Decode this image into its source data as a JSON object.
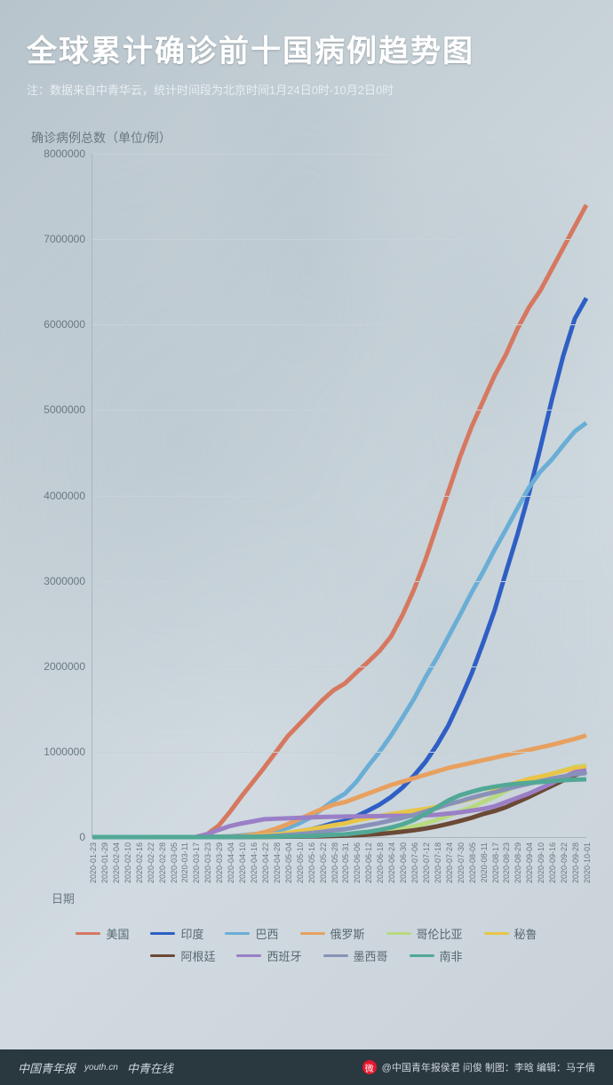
{
  "header": {
    "title": "全球累计确诊前十国病例趋势图",
    "subtitle": "注：数据来自中青华云，统计时间段为北京时间1月24日0时-10月2日0时"
  },
  "chart": {
    "type": "line",
    "yaxis_label": "确诊病例总数（单位/例）",
    "xaxis_label": "日期",
    "ylim": [
      0,
      8000000
    ],
    "yticks": [
      0,
      1000000,
      2000000,
      3000000,
      4000000,
      5000000,
      6000000,
      7000000,
      8000000
    ],
    "xticks": [
      "2020-01-23",
      "2020-01-29",
      "2020-02-04",
      "2020-02-10",
      "2020-02-16",
      "2020-02-22",
      "2020-02-28",
      "2020-03-05",
      "2020-03-11",
      "2020-03-17",
      "2020-03-23",
      "2020-03-29",
      "2020-04-04",
      "2020-04-10",
      "2020-04-16",
      "2020-04-22",
      "2020-04-28",
      "2020-05-04",
      "2020-05-10",
      "2020-05-16",
      "2020-05-22",
      "2020-05-28",
      "2020-05-31",
      "2020-06-06",
      "2020-06-12",
      "2020-06-18",
      "2020-06-24",
      "2020-06-30",
      "2020-07-06",
      "2020-07-12",
      "2020-07-18",
      "2020-07-24",
      "2020-07-30",
      "2020-08-05",
      "2020-08-11",
      "2020-08-17",
      "2020-08-23",
      "2020-08-29",
      "2020-09-04",
      "2020-09-10",
      "2020-09-16",
      "2020-09-22",
      "2020-09-28",
      "2020-10-01"
    ],
    "background_color": "#c5d0d6",
    "grid_color": "#c8d2d8",
    "axis_color": "#aab5bc",
    "text_color": "#6a7880",
    "line_width": 2.5,
    "series": [
      {
        "name": "美国",
        "color": "#d67860",
        "values": [
          0,
          0,
          0,
          0,
          0,
          0,
          0,
          20,
          90,
          2000,
          35000,
          135000,
          300000,
          480000,
          650000,
          820000,
          1000000,
          1180000,
          1320000,
          1460000,
          1600000,
          1720000,
          1800000,
          1930000,
          2050000,
          2180000,
          2350000,
          2600000,
          2900000,
          3250000,
          3650000,
          4050000,
          4450000,
          4800000,
          5100000,
          5400000,
          5650000,
          5950000,
          6200000,
          6400000,
          6650000,
          6900000,
          7150000,
          7400000
        ]
      },
      {
        "name": "印度",
        "color": "#2f5fc4",
        "values": [
          0,
          0,
          0,
          0,
          0,
          0,
          0,
          0,
          0,
          0,
          400,
          1000,
          3000,
          7000,
          13000,
          21000,
          31000,
          46000,
          67000,
          90000,
          125000,
          165000,
          190000,
          245000,
          310000,
          380000,
          470000,
          580000,
          720000,
          880000,
          1080000,
          1310000,
          1600000,
          1910000,
          2270000,
          2650000,
          3100000,
          3540000,
          4020000,
          4560000,
          5120000,
          5640000,
          6070000,
          6310000
        ]
      },
      {
        "name": "巴西",
        "color": "#6aaed6",
        "values": [
          0,
          0,
          0,
          0,
          0,
          0,
          0,
          0,
          0,
          200,
          1900,
          4300,
          10000,
          20000,
          32000,
          46000,
          72000,
          108000,
          160000,
          230000,
          330000,
          430000,
          510000,
          650000,
          830000,
          1000000,
          1190000,
          1400000,
          1620000,
          1870000,
          2100000,
          2350000,
          2600000,
          2860000,
          3100000,
          3360000,
          3600000,
          3850000,
          4090000,
          4280000,
          4420000,
          4590000,
          4750000,
          4850000
        ]
      },
      {
        "name": "俄罗斯",
        "color": "#e8a05f",
        "values": [
          0,
          0,
          0,
          0,
          0,
          0,
          0,
          0,
          0,
          100,
          400,
          1800,
          4700,
          12000,
          28000,
          58000,
          100000,
          150000,
          210000,
          270000,
          330000,
          380000,
          410000,
          460000,
          510000,
          560000,
          610000,
          650000,
          690000,
          730000,
          770000,
          810000,
          840000,
          870000,
          900000,
          930000,
          960000,
          990000,
          1020000,
          1050000,
          1080000,
          1115000,
          1150000,
          1190000
        ]
      },
      {
        "name": "哥伦比亚",
        "color": "#b8d980",
        "values": [
          0,
          0,
          0,
          0,
          0,
          0,
          0,
          0,
          0,
          0,
          200,
          700,
          1400,
          2500,
          3200,
          4400,
          5900,
          7900,
          11000,
          15000,
          20000,
          25000,
          30000,
          38000,
          46000,
          60000,
          77000,
          98000,
          125000,
          160000,
          200000,
          250000,
          300000,
          350000,
          410000,
          470000,
          540000,
          610000,
          660000,
          700000,
          740000,
          780000,
          820000,
          840000
        ]
      },
      {
        "name": "秘鲁",
        "color": "#e8c547",
        "values": [
          0,
          0,
          0,
          0,
          0,
          0,
          0,
          0,
          0,
          0,
          300,
          1000,
          2000,
          6000,
          12000,
          20000,
          31000,
          47000,
          68000,
          90000,
          115000,
          140000,
          160000,
          195000,
          220000,
          245000,
          270000,
          290000,
          310000,
          330000,
          355000,
          385000,
          415000,
          450000,
          490000,
          540000,
          600000,
          640000,
          680000,
          710000,
          740000,
          775000,
          810000,
          820000
        ]
      },
      {
        "name": "阿根廷",
        "color": "#6b4936",
        "values": [
          0,
          0,
          0,
          0,
          0,
          0,
          0,
          0,
          0,
          0,
          200,
          800,
          1400,
          2000,
          2700,
          3400,
          4100,
          5000,
          6000,
          7800,
          10000,
          14000,
          16500,
          22000,
          29000,
          37000,
          49000,
          64000,
          80000,
          100000,
          126000,
          155000,
          190000,
          225000,
          270000,
          305000,
          350000,
          410000,
          470000,
          535000,
          600000,
          665000,
          725000,
          770000
        ]
      },
      {
        "name": "西班牙",
        "color": "#9a7fc7",
        "values": [
          0,
          0,
          0,
          0,
          0,
          0,
          0,
          0,
          200,
          1200,
          33000,
          85000,
          130000,
          160000,
          185000,
          210000,
          215000,
          220000,
          225000,
          230000,
          235000,
          238000,
          240000,
          242000,
          244000,
          246000,
          248000,
          250000,
          252000,
          255000,
          262000,
          275000,
          290000,
          310000,
          330000,
          360000,
          410000,
          460000,
          510000,
          570000,
          630000,
          700000,
          760000,
          780000
        ]
      },
      {
        "name": "墨西哥",
        "color": "#8891b8",
        "values": [
          0,
          0,
          0,
          0,
          0,
          0,
          0,
          0,
          0,
          0,
          300,
          1000,
          1900,
          3800,
          6300,
          10000,
          16000,
          25000,
          35000,
          47000,
          62000,
          81000,
          93000,
          115000,
          140000,
          165000,
          195000,
          225000,
          260000,
          300000,
          340000,
          385000,
          420000,
          460000,
          495000,
          525000,
          560000,
          595000,
          625000,
          655000,
          685000,
          710000,
          735000,
          750000
        ]
      },
      {
        "name": "南非",
        "color": "#52a896",
        "values": [
          0,
          0,
          0,
          0,
          0,
          0,
          0,
          0,
          0,
          0,
          400,
          1300,
          1600,
          2000,
          2700,
          3600,
          5000,
          7200,
          10000,
          14000,
          20000,
          27000,
          33000,
          48000,
          62000,
          84000,
          112000,
          150000,
          200000,
          270000,
          350000,
          430000,
          490000,
          530000,
          565000,
          590000,
          610000,
          625000,
          635000,
          645000,
          655000,
          665000,
          672000,
          677000
        ]
      }
    ]
  },
  "footer": {
    "logos": [
      "中国青年报",
      "youth.cn",
      "中青在线"
    ],
    "credit": "@中国青年报侯君 问俊 制图：李晗 编辑：马子倩"
  }
}
